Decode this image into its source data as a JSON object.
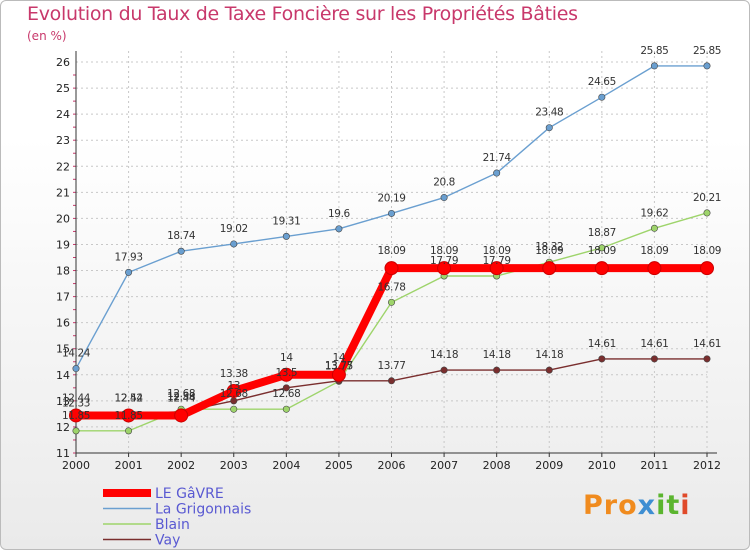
{
  "chart_data": {
    "type": "line",
    "title": "Evolution du Taux de Taxe Foncière sur les Propriétés Bâties",
    "ylabel": "(en %)",
    "xlabel": "",
    "ylim": [
      11,
      26
    ],
    "yticks": [
      11,
      12,
      13,
      14,
      15,
      16,
      17,
      18,
      19,
      20,
      21,
      22,
      23,
      24,
      25,
      26
    ],
    "x": [
      2000,
      2001,
      2002,
      2003,
      2004,
      2005,
      2006,
      2007,
      2008,
      2009,
      2010,
      2011,
      2012
    ],
    "grid": true,
    "series": [
      {
        "name": "LE GâVRE",
        "color": "#ff0000",
        "values": [
          12.44,
          12.44,
          12.44,
          13.38,
          14,
          14,
          18.09,
          18.09,
          18.09,
          18.09,
          18.09,
          18.09,
          18.09
        ],
        "labels": [
          "12.44",
          "12.44",
          "12.44",
          "13.38",
          "14",
          "14",
          "18.09",
          "18.09",
          "18.09",
          "18.09",
          "18.09",
          "18.09",
          "18.09"
        ]
      },
      {
        "name": "La Grigonnais",
        "color": "#6a9fd0",
        "values": [
          14.24,
          17.93,
          18.74,
          19.02,
          19.31,
          19.6,
          20.19,
          20.8,
          21.74,
          23.48,
          24.65,
          25.85,
          25.85
        ],
        "labels": [
          "14.24",
          "17.93",
          "18.74",
          "19.02",
          "19.31",
          "19.6",
          "20.19",
          "20.8",
          "21.74",
          "23.48",
          "24.65",
          "25.85",
          "25.85"
        ]
      },
      {
        "name": "Blain",
        "color": "#9ed46b",
        "values": [
          11.85,
          11.85,
          12.68,
          12.68,
          12.68,
          13.75,
          16.78,
          17.79,
          17.79,
          18.32,
          18.87,
          19.62,
          20.21
        ],
        "labels": [
          "11.85",
          "11.85",
          "12.68",
          "12.68",
          "12.68",
          "13.75",
          "16.78",
          "17.79",
          "17.79",
          "18.32",
          "18.87",
          "19.62",
          "20.21"
        ]
      },
      {
        "name": "Vay",
        "color": "#7a2e2e",
        "values": [
          12.33,
          12.52,
          12.58,
          13.0,
          13.5,
          13.77,
          13.77,
          14.18,
          14.18,
          14.18,
          14.61,
          14.61,
          14.61
        ],
        "labels": [
          "12.33",
          "12.52",
          "12.58",
          "13",
          "13.5",
          "13.77",
          "13.77",
          "14.18",
          "14.18",
          "14.18",
          "14.61",
          "14.61",
          "14.61"
        ]
      }
    ]
  },
  "logo": {
    "p1": "Pro",
    "p2": "x",
    "p3": "it",
    "p4": "i"
  }
}
